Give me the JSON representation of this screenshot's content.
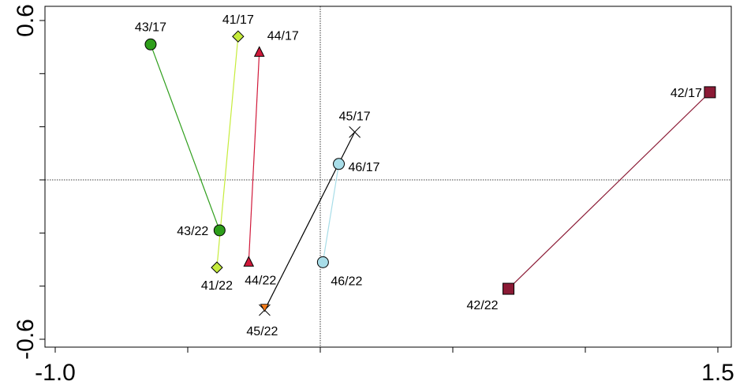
{
  "chart_data": {
    "type": "scatter",
    "xlim": [
      -1.0,
      1.5
    ],
    "ylim": [
      -0.6,
      0.6
    ],
    "x_tick_labels": [
      "-1.0",
      "1.5"
    ],
    "y_tick_labels": [
      "0.6",
      "-0.6"
    ],
    "reference_lines": {
      "x": 0.0,
      "y": 0.0,
      "style": "dotted"
    },
    "grid": false,
    "series": [
      {
        "color": "#2e9e1b",
        "marker": "circle",
        "points": [
          {
            "label": "43/17",
            "x": -0.64,
            "y": 0.51
          },
          {
            "label": "43/22",
            "x": -0.38,
            "y": -0.19
          }
        ]
      },
      {
        "color": "#c6ec3c",
        "marker": "diamond",
        "points": [
          {
            "label": "41/17",
            "x": -0.31,
            "y": 0.54
          },
          {
            "label": "41/22",
            "x": -0.39,
            "y": -0.33
          }
        ]
      },
      {
        "color": "#d11a3b",
        "marker": "triangle",
        "points": [
          {
            "label": "44/17",
            "x": -0.23,
            "y": 0.48
          },
          {
            "label": "44/22",
            "x": -0.27,
            "y": -0.31
          }
        ]
      },
      {
        "color": "#000000",
        "marker": "cross",
        "points": [
          {
            "label": "45/17",
            "x": 0.13,
            "y": 0.18
          },
          {
            "label": "45/22",
            "x": -0.21,
            "y": -0.49
          }
        ]
      },
      {
        "color": "#a8dde8",
        "marker": "circle",
        "points": [
          {
            "label": "46/17",
            "x": 0.07,
            "y": 0.06
          },
          {
            "label": "46/22",
            "x": 0.01,
            "y": -0.31
          }
        ]
      },
      {
        "color": "#8b1a35",
        "marker": "square",
        "points": [
          {
            "label": "42/17",
            "x": 1.47,
            "y": 0.33
          },
          {
            "label": "42/22",
            "x": 0.71,
            "y": -0.41
          }
        ]
      }
    ],
    "extra_marker": {
      "color": "#f07a1a",
      "marker": "triangle-down",
      "x": -0.21,
      "y": -0.48
    }
  }
}
